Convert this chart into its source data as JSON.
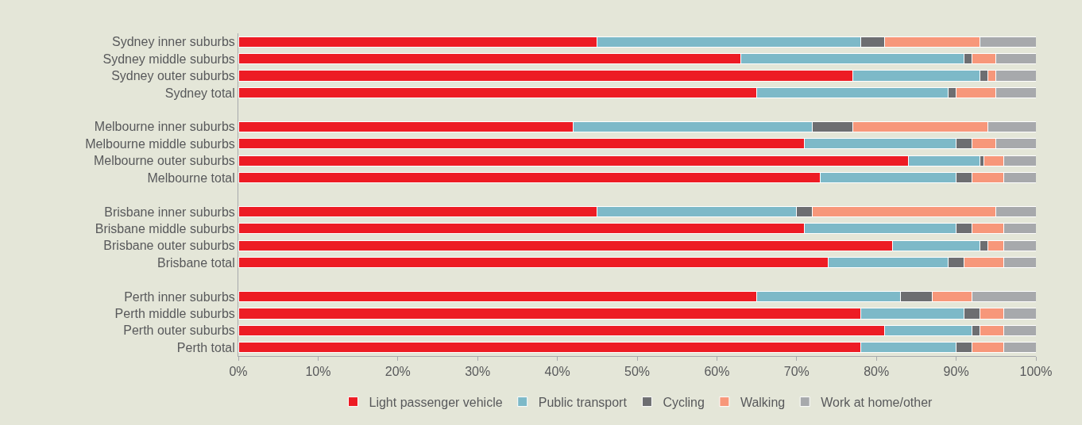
{
  "chart_data": {
    "type": "bar",
    "orientation": "horizontal",
    "stacked": true,
    "categories": [
      "Sydney inner suburbs",
      "Sydney middle suburbs",
      "Sydney outer suburbs",
      "Sydney total",
      null,
      "Melbourne inner suburbs",
      "Melbourne middle suburbs",
      "Melbourne outer suburbs",
      "Melbourne total",
      null,
      "Brisbane inner suburbs",
      "Brisbane middle suburbs",
      "Brisbane outer suburbs",
      "Brisbane total",
      null,
      "Perth inner suburbs",
      "Perth middle suburbs",
      "Perth outer suburbs",
      "Perth total"
    ],
    "series": [
      {
        "name": "Light passenger vehicle",
        "color": "#ed1c24",
        "values": [
          45,
          63,
          77,
          65,
          null,
          42,
          71,
          84,
          73,
          null,
          45,
          71,
          82,
          74,
          null,
          65,
          78,
          81,
          78
        ]
      },
      {
        "name": "Public transport",
        "color": "#7db9c8",
        "values": [
          33,
          28,
          16,
          24,
          null,
          30,
          19,
          9,
          17,
          null,
          25,
          19,
          11,
          15,
          null,
          18,
          13,
          11,
          12
        ]
      },
      {
        "name": "Cycling",
        "color": "#6d6e71",
        "values": [
          3,
          1,
          1,
          1,
          null,
          5,
          2,
          0.5,
          2,
          null,
          2,
          2,
          1,
          2,
          null,
          4,
          2,
          1,
          2
        ]
      },
      {
        "name": "Walking",
        "color": "#f7977a",
        "values": [
          12,
          3,
          1,
          5,
          null,
          17,
          3,
          2.5,
          4,
          null,
          23,
          4,
          2,
          5,
          null,
          5,
          3,
          3,
          4
        ]
      },
      {
        "name": "Work at home/other",
        "color": "#a7a9ac",
        "values": [
          7,
          5,
          5,
          5,
          null,
          6,
          5,
          4,
          4,
          null,
          5,
          4,
          4,
          4,
          null,
          8,
          4,
          4,
          4
        ]
      }
    ],
    "xlim": [
      0,
      100
    ],
    "xticks": [
      {
        "value": 0,
        "label": "0%"
      },
      {
        "value": 10,
        "label": "10%"
      },
      {
        "value": 20,
        "label": "20%"
      },
      {
        "value": 30,
        "label": "30%"
      },
      {
        "value": 40,
        "label": "40%"
      },
      {
        "value": 50,
        "label": "50%"
      },
      {
        "value": 60,
        "label": "60%"
      },
      {
        "value": 70,
        "label": "70%"
      },
      {
        "value": 80,
        "label": "80%"
      },
      {
        "value": 90,
        "label": "90%"
      },
      {
        "value": 100,
        "label": "100%"
      }
    ],
    "grid": false,
    "legend": "bottom"
  }
}
